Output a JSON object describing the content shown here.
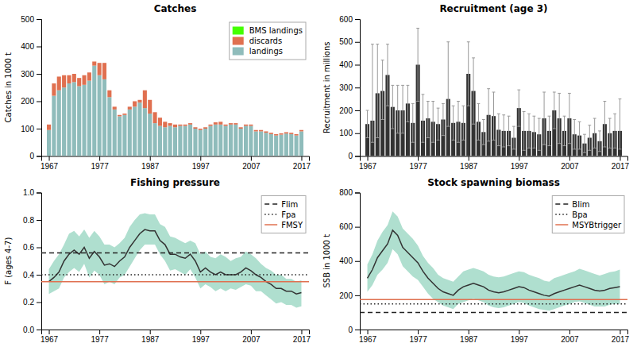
{
  "chart_data": [
    {
      "type": "bar",
      "title": "Catches",
      "y_label": "Catches in 1000 t",
      "stacked": true,
      "legend": "upper right",
      "grid": false,
      "x": [
        1967,
        1968,
        1969,
        1970,
        1971,
        1972,
        1973,
        1974,
        1975,
        1976,
        1977,
        1978,
        1979,
        1980,
        1981,
        1982,
        1983,
        1984,
        1985,
        1986,
        1987,
        1988,
        1989,
        1990,
        1991,
        1992,
        1993,
        1994,
        1995,
        1996,
        1997,
        1998,
        1999,
        2000,
        2001,
        2002,
        2003,
        2004,
        2005,
        2006,
        2007,
        2008,
        2009,
        2010,
        2011,
        2012,
        2013,
        2014,
        2015,
        2016,
        2017
      ],
      "series": [
        {
          "name": "landings",
          "color": "#8fbcbb",
          "values": [
            95,
            220,
            240,
            250,
            265,
            270,
            255,
            260,
            275,
            330,
            295,
            280,
            215,
            170,
            145,
            150,
            170,
            180,
            195,
            175,
            155,
            120,
            110,
            105,
            110,
            105,
            110,
            110,
            115,
            100,
            95,
            100,
            110,
            115,
            115,
            110,
            115,
            115,
            100,
            110,
            110,
            90,
            90,
            85,
            80,
            75,
            78,
            82,
            80,
            75,
            90
          ]
        },
        {
          "name": "discards",
          "color": "#e07050",
          "values": [
            20,
            45,
            50,
            45,
            30,
            30,
            30,
            35,
            30,
            15,
            45,
            60,
            25,
            10,
            5,
            5,
            10,
            20,
            10,
            65,
            50,
            40,
            30,
            20,
            10,
            10,
            5,
            5,
            5,
            5,
            5,
            5,
            5,
            8,
            10,
            5,
            5,
            5,
            5,
            5,
            5,
            5,
            5,
            5,
            5,
            5,
            5,
            5,
            5,
            5,
            5
          ]
        },
        {
          "name": "BMS landings",
          "color": "#44ff00",
          "values": [
            0,
            0,
            0,
            0,
            0,
            0,
            0,
            0,
            0,
            0,
            0,
            0,
            0,
            0,
            0,
            0,
            0,
            0,
            0,
            0,
            0,
            0,
            0,
            0,
            0,
            0,
            0,
            0,
            0,
            0,
            0,
            0,
            0,
            0,
            0,
            0,
            0,
            0,
            0,
            0,
            0,
            0,
            0,
            0,
            0,
            0,
            0,
            0,
            0,
            0,
            0
          ]
        }
      ],
      "xlim": [
        1965.5,
        2018.5
      ],
      "xticks": [
        1967,
        1977,
        1987,
        1997,
        2007,
        2017
      ],
      "ylim": [
        0,
        500
      ],
      "yticks": [
        0,
        100,
        200,
        300,
        400,
        500
      ]
    },
    {
      "type": "bar",
      "title": "Recruitment (age 3)",
      "y_label": "Recruitment in millions",
      "color": "#333333",
      "grid": false,
      "x": [
        1967,
        1968,
        1969,
        1970,
        1971,
        1972,
        1973,
        1974,
        1975,
        1976,
        1977,
        1978,
        1979,
        1980,
        1981,
        1982,
        1983,
        1984,
        1985,
        1986,
        1987,
        1988,
        1989,
        1990,
        1991,
        1992,
        1993,
        1994,
        1995,
        1996,
        1997,
        1998,
        1999,
        2000,
        2001,
        2002,
        2003,
        2004,
        2005,
        2006,
        2007,
        2008,
        2009,
        2010,
        2011,
        2012,
        2013,
        2014,
        2015,
        2016,
        2017
      ],
      "values": [
        140,
        155,
        275,
        285,
        355,
        215,
        200,
        200,
        230,
        145,
        400,
        155,
        165,
        150,
        140,
        160,
        250,
        145,
        150,
        145,
        360,
        285,
        150,
        105,
        180,
        175,
        115,
        110,
        110,
        80,
        210,
        110,
        110,
        105,
        95,
        165,
        110,
        200,
        165,
        110,
        165,
        95,
        90,
        55,
        80,
        100,
        65,
        140,
        100,
        110,
        110
      ],
      "error": {
        "color": "#999999",
        "upper": [
          200,
          490,
          490,
          420,
          490,
          310,
          310,
          310,
          310,
          230,
          560,
          270,
          240,
          240,
          210,
          230,
          500,
          220,
          240,
          220,
          500,
          430,
          230,
          160,
          295,
          280,
          185,
          180,
          175,
          130,
          290,
          195,
          185,
          175,
          165,
          280,
          175,
          280,
          275,
          175,
          275,
          160,
          150,
          95,
          135,
          165,
          110,
          240,
          165,
          185,
          250
        ],
        "lower": [
          80,
          60,
          80,
          160,
          220,
          120,
          100,
          100,
          150,
          60,
          240,
          60,
          80,
          60,
          70,
          90,
          130,
          70,
          60,
          70,
          220,
          140,
          70,
          50,
          65,
          70,
          45,
          40,
          45,
          30,
          130,
          25,
          35,
          35,
          25,
          50,
          45,
          120,
          55,
          45,
          55,
          30,
          30,
          15,
          25,
          35,
          20,
          40,
          35,
          35,
          30
        ]
      },
      "xlim": [
        1965.5,
        2018.5
      ],
      "xticks": [
        1967,
        1977,
        1987,
        1997,
        2007,
        2017
      ],
      "ylim": [
        0,
        600
      ],
      "yticks": [
        0,
        100,
        200,
        300,
        400,
        500,
        600
      ]
    },
    {
      "type": "line",
      "title": "Fishing pressure",
      "y_label": "F (ages 4-7)",
      "color": "#333333",
      "legend": "upper right",
      "grid": false,
      "x": [
        1967,
        1968,
        1969,
        1970,
        1971,
        1972,
        1973,
        1974,
        1975,
        1976,
        1977,
        1978,
        1979,
        1980,
        1981,
        1982,
        1983,
        1984,
        1985,
        1986,
        1987,
        1988,
        1989,
        1990,
        1991,
        1992,
        1993,
        1994,
        1995,
        1996,
        1997,
        1998,
        1999,
        2000,
        2001,
        2002,
        2003,
        2004,
        2005,
        2006,
        2007,
        2008,
        2009,
        2010,
        2011,
        2012,
        2013,
        2014,
        2015,
        2016,
        2017
      ],
      "values": [
        0.35,
        0.38,
        0.42,
        0.5,
        0.55,
        0.58,
        0.55,
        0.6,
        0.52,
        0.57,
        0.53,
        0.47,
        0.48,
        0.46,
        0.5,
        0.53,
        0.6,
        0.65,
        0.7,
        0.73,
        0.72,
        0.72,
        0.65,
        0.62,
        0.55,
        0.55,
        0.53,
        0.52,
        0.55,
        0.5,
        0.42,
        0.45,
        0.42,
        0.4,
        0.42,
        0.4,
        0.4,
        0.4,
        0.42,
        0.45,
        0.43,
        0.4,
        0.38,
        0.35,
        0.33,
        0.3,
        0.3,
        0.28,
        0.28,
        0.26,
        0.27
      ],
      "band": {
        "color": "#5fbfa0",
        "upper": [
          0.44,
          0.5,
          0.55,
          0.62,
          0.7,
          0.72,
          0.68,
          0.73,
          0.67,
          0.72,
          0.68,
          0.62,
          0.62,
          0.6,
          0.63,
          0.67,
          0.75,
          0.8,
          0.84,
          0.85,
          0.84,
          0.84,
          0.77,
          0.75,
          0.68,
          0.67,
          0.65,
          0.63,
          0.65,
          0.63,
          0.55,
          0.57,
          0.53,
          0.52,
          0.55,
          0.53,
          0.5,
          0.52,
          0.53,
          0.57,
          0.55,
          0.52,
          0.48,
          0.45,
          0.43,
          0.4,
          0.4,
          0.37,
          0.37,
          0.35,
          0.36
        ],
        "lower": [
          0.26,
          0.28,
          0.3,
          0.38,
          0.42,
          0.45,
          0.42,
          0.48,
          0.38,
          0.43,
          0.4,
          0.33,
          0.35,
          0.33,
          0.38,
          0.4,
          0.46,
          0.52,
          0.58,
          0.62,
          0.62,
          0.62,
          0.55,
          0.5,
          0.43,
          0.44,
          0.42,
          0.4,
          0.44,
          0.38,
          0.3,
          0.33,
          0.31,
          0.28,
          0.3,
          0.28,
          0.3,
          0.29,
          0.31,
          0.33,
          0.32,
          0.28,
          0.28,
          0.25,
          0.22,
          0.19,
          0.2,
          0.18,
          0.18,
          0.16,
          0.17
        ]
      },
      "hlines": [
        {
          "name": "Flim",
          "value": 0.56,
          "color": "#222222",
          "line_style": "dashed"
        },
        {
          "name": "Fpa",
          "value": 0.4,
          "color": "#222222",
          "line_style": "dotted"
        },
        {
          "name": "FMSY",
          "value": 0.35,
          "color": "#e07050",
          "line_style": "solid"
        }
      ],
      "xlim": [
        1965.5,
        2018.5
      ],
      "xticks": [
        1967,
        1977,
        1987,
        1997,
        2007,
        2017
      ],
      "ylim": [
        0,
        1
      ],
      "yticks": [
        {
          "value": 0,
          "label": "0.0"
        },
        0.2,
        0.4,
        0.6,
        0.8,
        {
          "value": 1,
          "label": "1.0"
        }
      ]
    },
    {
      "type": "line",
      "title": "Stock spawning biomass",
      "y_label": "SSB in 1000 t",
      "color": "#333333",
      "legend": "upper right",
      "grid": false,
      "x": [
        1967,
        1968,
        1969,
        1970,
        1971,
        1972,
        1973,
        1974,
        1975,
        1976,
        1977,
        1978,
        1979,
        1980,
        1981,
        1982,
        1983,
        1984,
        1985,
        1986,
        1987,
        1988,
        1989,
        1990,
        1991,
        1992,
        1993,
        1994,
        1995,
        1996,
        1997,
        1998,
        1999,
        2000,
        2001,
        2002,
        2003,
        2004,
        2005,
        2006,
        2007,
        2008,
        2009,
        2010,
        2011,
        2012,
        2013,
        2014,
        2015,
        2016,
        2017
      ],
      "values": [
        300,
        350,
        420,
        460,
        500,
        580,
        550,
        480,
        450,
        420,
        390,
        340,
        300,
        270,
        240,
        220,
        210,
        200,
        230,
        250,
        260,
        270,
        260,
        250,
        230,
        220,
        215,
        220,
        230,
        240,
        250,
        245,
        230,
        220,
        210,
        200,
        195,
        210,
        220,
        230,
        240,
        250,
        260,
        250,
        240,
        230,
        225,
        230,
        240,
        245,
        250
      ],
      "band": {
        "color": "#5fbfa0",
        "upper": [
          380,
          440,
          520,
          570,
          610,
          690,
          660,
          590,
          560,
          530,
          490,
          430,
          390,
          360,
          320,
          300,
          290,
          280,
          310,
          340,
          350,
          360,
          350,
          340,
          320,
          310,
          305,
          310,
          320,
          330,
          340,
          335,
          320,
          310,
          300,
          285,
          280,
          300,
          310,
          320,
          330,
          340,
          355,
          345,
          335,
          325,
          315,
          325,
          335,
          340,
          350
        ],
        "lower": [
          220,
          260,
          320,
          350,
          390,
          470,
          440,
          370,
          340,
          310,
          290,
          250,
          210,
          180,
          160,
          140,
          130,
          120,
          150,
          160,
          170,
          180,
          170,
          160,
          140,
          130,
          125,
          130,
          140,
          150,
          160,
          155,
          140,
          130,
          120,
          115,
          110,
          120,
          130,
          140,
          150,
          160,
          165,
          155,
          145,
          135,
          135,
          135,
          145,
          150,
          150
        ]
      },
      "hlines": [
        {
          "name": "Blim",
          "value": 100,
          "color": "#222222",
          "line_style": "dashed"
        },
        {
          "name": "Bpa",
          "value": 150,
          "color": "#222222",
          "line_style": "dotted"
        },
        {
          "name": "MSYBtrigger",
          "value": 175,
          "color": "#e07050",
          "line_style": "solid"
        }
      ],
      "xlim": [
        1965.5,
        2018.5
      ],
      "xticks": [
        1967,
        1977,
        1987,
        1997,
        2007,
        2017
      ],
      "ylim": [
        0,
        800
      ],
      "yticks": [
        0,
        200,
        400,
        600,
        800
      ]
    }
  ]
}
